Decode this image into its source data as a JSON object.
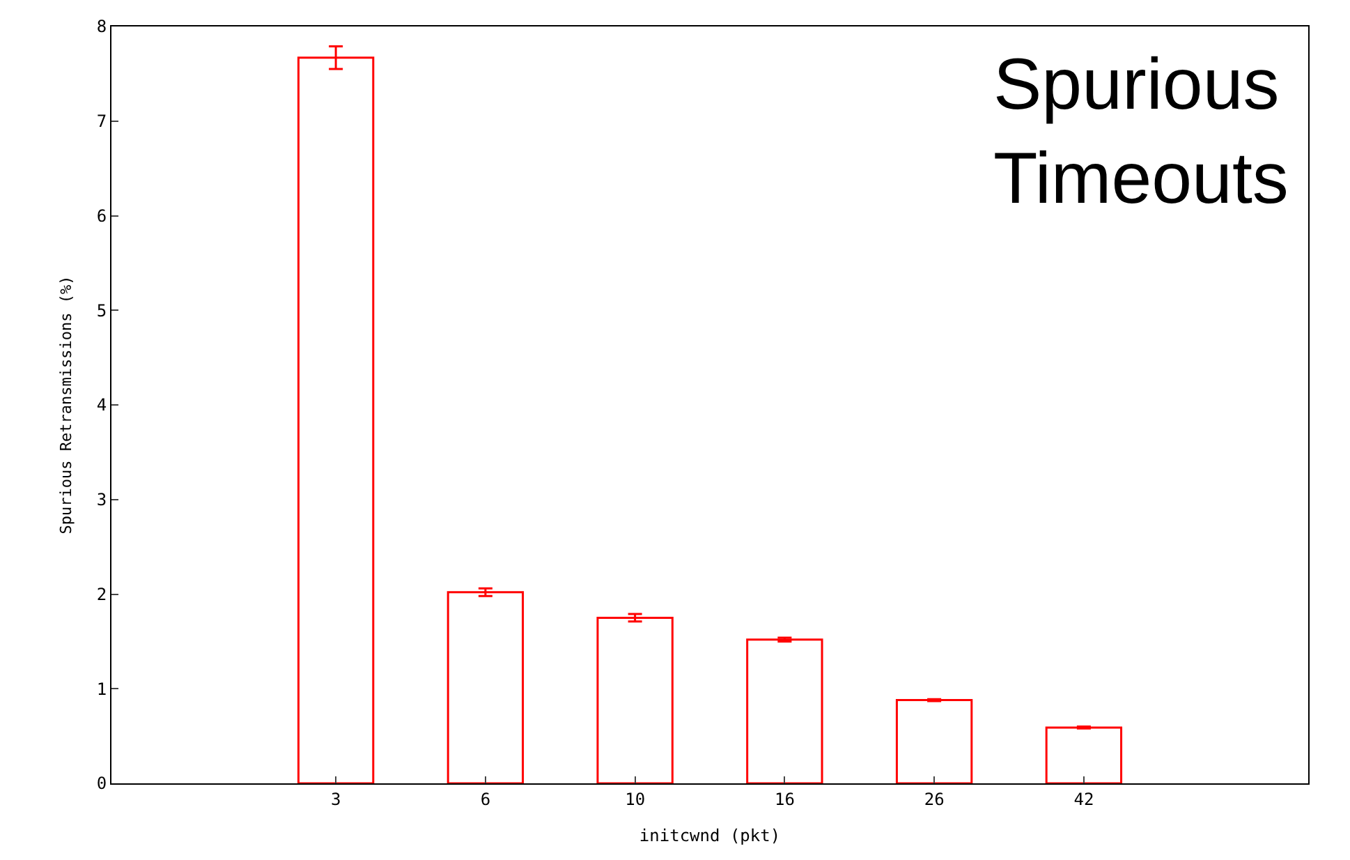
{
  "chart_data": {
    "type": "bar",
    "xlabel": "initcwnd (pkt)",
    "ylabel": "Spurious Retransmissions (%)",
    "categories": [
      "3",
      "6",
      "10",
      "16",
      "26",
      "42"
    ],
    "values": [
      7.67,
      2.02,
      1.75,
      1.52,
      0.88,
      0.59
    ],
    "errors": [
      0.12,
      0.04,
      0.04,
      0.02,
      0.01,
      0.01
    ],
    "color": "#ff0000",
    "ylim": [
      0,
      8
    ],
    "yticks": [
      0,
      1,
      2,
      3,
      4,
      5,
      6,
      7,
      8
    ],
    "legend": false,
    "annotations": [
      "Spurious\nTimeouts"
    ]
  }
}
